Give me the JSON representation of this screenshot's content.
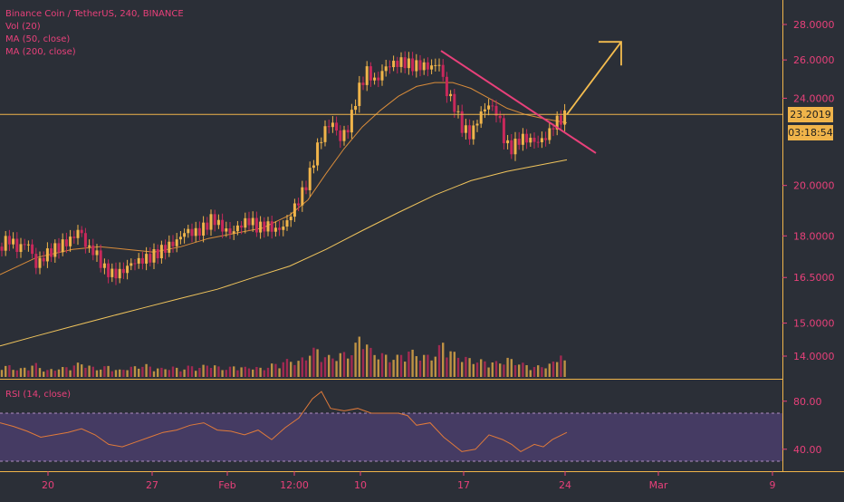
{
  "legend": {
    "title": "Binance Coin / TetherUS, 240, BINANCE",
    "vol": "Vol (20)",
    "ma50": "MA (50, close)",
    "ma200": "MA (200, close)",
    "rsi": "RSI (14, close)"
  },
  "badges": {
    "price": "23.2019",
    "countdown": "03:18:54"
  },
  "colors": {
    "background": "#2b2f37",
    "up": "#f0b44a",
    "down": "#c9285b",
    "trendline": "#e8407a",
    "arrow": "#f5bd4f",
    "ma50": "#d98c3a",
    "ma200": "#f0c45c",
    "rsi_line": "#e07a3a",
    "rsi_band": "#4a3d6b",
    "price_line": "#f0b44a",
    "axis_text": "#e8407a"
  },
  "chart_data": {
    "type": "candlestick",
    "price_axis": {
      "ticks": [
        "28.0000",
        "26.0000",
        "24.0000",
        "20.0000",
        "18.0000",
        "16.5000",
        "15.0000",
        "14.0000"
      ],
      "values": [
        28.0,
        26.0,
        24.0,
        20.0,
        18.0,
        16.5,
        15.0,
        14.0
      ],
      "scale": "log"
    },
    "rsi_axis": {
      "ticks": [
        "80.00",
        "40.00"
      ],
      "values": [
        80,
        40
      ],
      "band": [
        30,
        70
      ]
    },
    "x_axis": {
      "labels": [
        "20",
        "27",
        "Feb",
        "12:00",
        "10",
        "17",
        "24",
        "Mar",
        "9"
      ]
    },
    "current_price": 23.2019,
    "countdown": "03:18:54",
    "close_path": [
      [
        0,
        17.6
      ],
      [
        10,
        17.9
      ],
      [
        20,
        17.5
      ],
      [
        30,
        17.8
      ],
      [
        40,
        16.9
      ],
      [
        50,
        17.3
      ],
      [
        60,
        17.5
      ],
      [
        70,
        17.7
      ],
      [
        80,
        17.9
      ],
      [
        88,
        18.3
      ],
      [
        95,
        17.6
      ],
      [
        105,
        17.4
      ],
      [
        115,
        16.8
      ],
      [
        125,
        16.6
      ],
      [
        135,
        16.7
      ],
      [
        145,
        17.0
      ],
      [
        155,
        17.1
      ],
      [
        165,
        17.2
      ],
      [
        175,
        17.4
      ],
      [
        185,
        17.6
      ],
      [
        195,
        17.8
      ],
      [
        205,
        18.2
      ],
      [
        215,
        18.1
      ],
      [
        225,
        18.3
      ],
      [
        235,
        18.7
      ],
      [
        245,
        18.3
      ],
      [
        255,
        18.1
      ],
      [
        265,
        18.4
      ],
      [
        275,
        18.6
      ],
      [
        285,
        18.3
      ],
      [
        295,
        18.4
      ],
      [
        305,
        18.2
      ],
      [
        315,
        18.4
      ],
      [
        322,
        18.9
      ],
      [
        330,
        19.4
      ],
      [
        340,
        20.2
      ],
      [
        350,
        21.6
      ],
      [
        360,
        22.6
      ],
      [
        368,
        22.8
      ],
      [
        375,
        22.0
      ],
      [
        385,
        22.6
      ],
      [
        395,
        24.3
      ],
      [
        405,
        25.4
      ],
      [
        415,
        24.8
      ],
      [
        425,
        25.6
      ],
      [
        435,
        25.8
      ],
      [
        445,
        25.9
      ],
      [
        455,
        25.7
      ],
      [
        465,
        25.7
      ],
      [
        475,
        25.6
      ],
      [
        485,
        25.8
      ],
      [
        492,
        24.4
      ],
      [
        500,
        23.8
      ],
      [
        510,
        22.6
      ],
      [
        520,
        22.2
      ],
      [
        530,
        23.2
      ],
      [
        540,
        23.7
      ],
      [
        550,
        23.2
      ],
      [
        558,
        21.8
      ],
      [
        565,
        21.6
      ],
      [
        575,
        22.1
      ],
      [
        585,
        22.0
      ],
      [
        595,
        21.9
      ],
      [
        605,
        22.2
      ],
      [
        612,
        22.8
      ],
      [
        620,
        23.0
      ],
      [
        626,
        23.2
      ]
    ],
    "volume": [
      [
        0,
        0.18
      ],
      [
        10,
        0.22
      ],
      [
        20,
        0.14
      ],
      [
        30,
        0.2
      ],
      [
        40,
        0.25
      ],
      [
        50,
        0.12
      ],
      [
        60,
        0.16
      ],
      [
        70,
        0.18
      ],
      [
        80,
        0.22
      ],
      [
        90,
        0.28
      ],
      [
        100,
        0.2
      ],
      [
        110,
        0.16
      ],
      [
        120,
        0.22
      ],
      [
        130,
        0.12
      ],
      [
        140,
        0.18
      ],
      [
        150,
        0.2
      ],
      [
        160,
        0.24
      ],
      [
        170,
        0.18
      ],
      [
        180,
        0.16
      ],
      [
        190,
        0.2
      ],
      [
        200,
        0.14
      ],
      [
        210,
        0.22
      ],
      [
        220,
        0.18
      ],
      [
        230,
        0.26
      ],
      [
        240,
        0.2
      ],
      [
        250,
        0.16
      ],
      [
        260,
        0.22
      ],
      [
        270,
        0.18
      ],
      [
        280,
        0.2
      ],
      [
        290,
        0.16
      ],
      [
        300,
        0.24
      ],
      [
        310,
        0.28
      ],
      [
        320,
        0.34
      ],
      [
        330,
        0.3
      ],
      [
        340,
        0.46
      ],
      [
        350,
        0.56
      ],
      [
        360,
        0.38
      ],
      [
        370,
        0.42
      ],
      [
        380,
        0.46
      ],
      [
        390,
        0.5
      ],
      [
        400,
        0.94
      ],
      [
        405,
        0.66
      ],
      [
        410,
        0.5
      ],
      [
        420,
        0.46
      ],
      [
        430,
        0.38
      ],
      [
        440,
        0.4
      ],
      [
        450,
        0.52
      ],
      [
        460,
        0.46
      ],
      [
        470,
        0.4
      ],
      [
        480,
        0.44
      ],
      [
        490,
        0.7
      ],
      [
        500,
        0.46
      ],
      [
        510,
        0.4
      ],
      [
        520,
        0.34
      ],
      [
        530,
        0.32
      ],
      [
        540,
        0.3
      ],
      [
        550,
        0.28
      ],
      [
        560,
        0.36
      ],
      [
        570,
        0.3
      ],
      [
        580,
        0.24
      ],
      [
        590,
        0.2
      ],
      [
        600,
        0.22
      ],
      [
        610,
        0.26
      ],
      [
        620,
        0.5
      ],
      [
        626,
        0.16
      ]
    ],
    "ma50_path": [
      [
        0,
        16.6
      ],
      [
        40,
        17.2
      ],
      [
        80,
        17.5
      ],
      [
        110,
        17.6
      ],
      [
        140,
        17.5
      ],
      [
        170,
        17.4
      ],
      [
        200,
        17.6
      ],
      [
        230,
        17.9
      ],
      [
        260,
        18.1
      ],
      [
        290,
        18.3
      ],
      [
        320,
        18.8
      ],
      [
        340,
        19.4
      ],
      [
        360,
        20.5
      ],
      [
        380,
        21.6
      ],
      [
        400,
        22.6
      ],
      [
        420,
        23.4
      ],
      [
        440,
        24.1
      ],
      [
        460,
        24.6
      ],
      [
        480,
        24.8
      ],
      [
        500,
        24.8
      ],
      [
        520,
        24.5
      ],
      [
        540,
        24.0
      ],
      [
        560,
        23.5
      ],
      [
        580,
        23.2
      ],
      [
        600,
        23.0
      ],
      [
        626,
        22.8
      ]
    ],
    "ma200_path": [
      [
        0,
        14.3
      ],
      [
        40,
        14.6
      ],
      [
        80,
        14.9
      ],
      [
        120,
        15.2
      ],
      [
        160,
        15.5
      ],
      [
        200,
        15.8
      ],
      [
        240,
        16.1
      ],
      [
        280,
        16.5
      ],
      [
        320,
        16.9
      ],
      [
        360,
        17.5
      ],
      [
        400,
        18.2
      ],
      [
        440,
        18.9
      ],
      [
        480,
        19.6
      ],
      [
        520,
        20.2
      ],
      [
        560,
        20.6
      ],
      [
        600,
        20.9
      ],
      [
        626,
        21.1
      ]
    ],
    "rsi_path": [
      [
        0,
        62
      ],
      [
        15,
        59
      ],
      [
        30,
        55
      ],
      [
        45,
        50
      ],
      [
        60,
        52
      ],
      [
        75,
        54
      ],
      [
        90,
        57
      ],
      [
        105,
        52
      ],
      [
        120,
        44
      ],
      [
        135,
        42
      ],
      [
        150,
        46
      ],
      [
        165,
        50
      ],
      [
        180,
        54
      ],
      [
        195,
        56
      ],
      [
        210,
        60
      ],
      [
        225,
        62
      ],
      [
        240,
        56
      ],
      [
        255,
        55
      ],
      [
        270,
        52
      ],
      [
        285,
        56
      ],
      [
        300,
        48
      ],
      [
        315,
        58
      ],
      [
        330,
        66
      ],
      [
        345,
        82
      ],
      [
        355,
        88
      ],
      [
        365,
        74
      ],
      [
        380,
        72
      ],
      [
        395,
        74
      ],
      [
        410,
        70
      ],
      [
        425,
        70
      ],
      [
        440,
        70
      ],
      [
        450,
        68
      ],
      [
        460,
        60
      ],
      [
        475,
        62
      ],
      [
        490,
        50
      ],
      [
        500,
        44
      ],
      [
        510,
        38
      ],
      [
        525,
        40
      ],
      [
        540,
        52
      ],
      [
        555,
        48
      ],
      [
        565,
        44
      ],
      [
        575,
        38
      ],
      [
        590,
        44
      ],
      [
        600,
        42
      ],
      [
        610,
        48
      ],
      [
        626,
        54
      ]
    ],
    "trendline": [
      [
        487,
        26.5
      ],
      [
        658,
        21.4
      ]
    ],
    "arrow": [
      [
        626,
        23.2
      ],
      [
        686,
        27.0
      ]
    ]
  }
}
